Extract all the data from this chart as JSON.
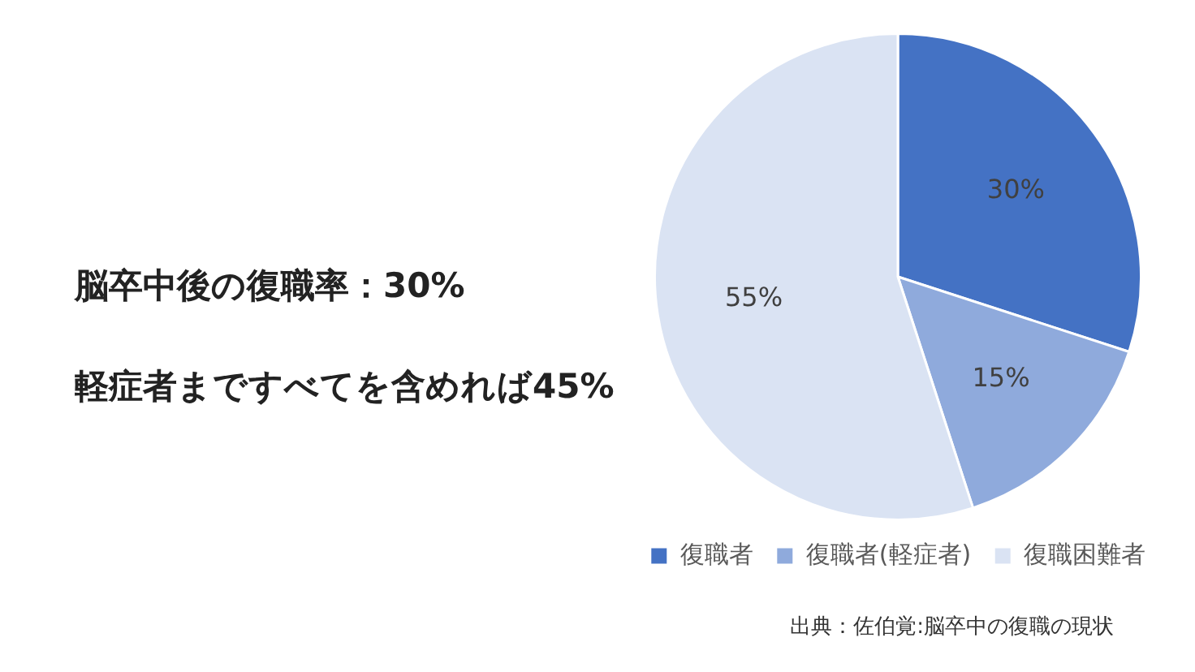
{
  "chart_data": {
    "type": "pie",
    "categories": [
      "復職者",
      "復職者(軽症者)",
      "復職困難者"
    ],
    "values": [
      30,
      15,
      55
    ],
    "colors": [
      "#4472c4",
      "#8faadc",
      "#dae3f3"
    ],
    "value_labels": [
      "30%",
      "15%",
      "55%"
    ],
    "legend": "bottom",
    "annotations": [
      "脳卒中後の復職率：30%",
      "軽症者まですべてを含めれば45%",
      "出典：佐伯覚:脳卒中の復職の現状"
    ]
  }
}
